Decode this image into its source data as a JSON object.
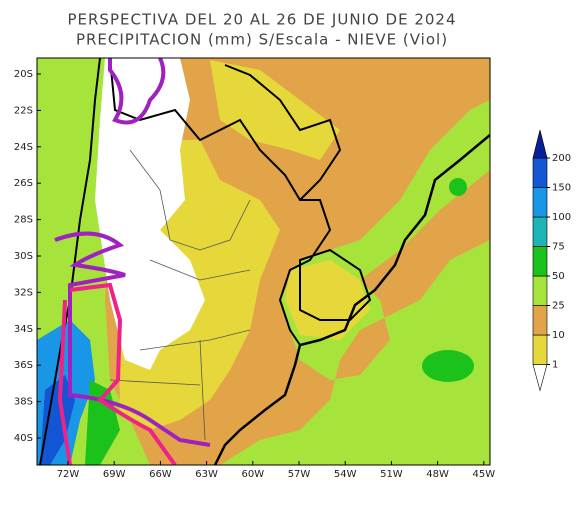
{
  "title": [
    "PERSPECTIVA DEL 20 AL 26 DE JUNIO DE 2024",
    "PRECIPITACION (mm) S/Escala - NIEVE (Viol)"
  ],
  "map": {
    "lat_labels": [
      "20S",
      "22S",
      "24S",
      "26S",
      "28S",
      "30S",
      "32S",
      "34S",
      "36S",
      "38S",
      "40S"
    ],
    "lon_labels": [
      "72W",
      "69W",
      "66W",
      "63W",
      "60W",
      "57W",
      "54W",
      "51W",
      "48W",
      "45W"
    ]
  },
  "colorbar": {
    "levels": [
      1,
      10,
      25,
      50,
      75,
      100,
      150,
      200
    ],
    "colors": [
      "#ffffff",
      "#e6d83a",
      "#e2a448",
      "#a6e43c",
      "#1cc21c",
      "#1cb4b4",
      "#1a96e6",
      "#1256d4",
      "#0a1e9a"
    ]
  }
}
